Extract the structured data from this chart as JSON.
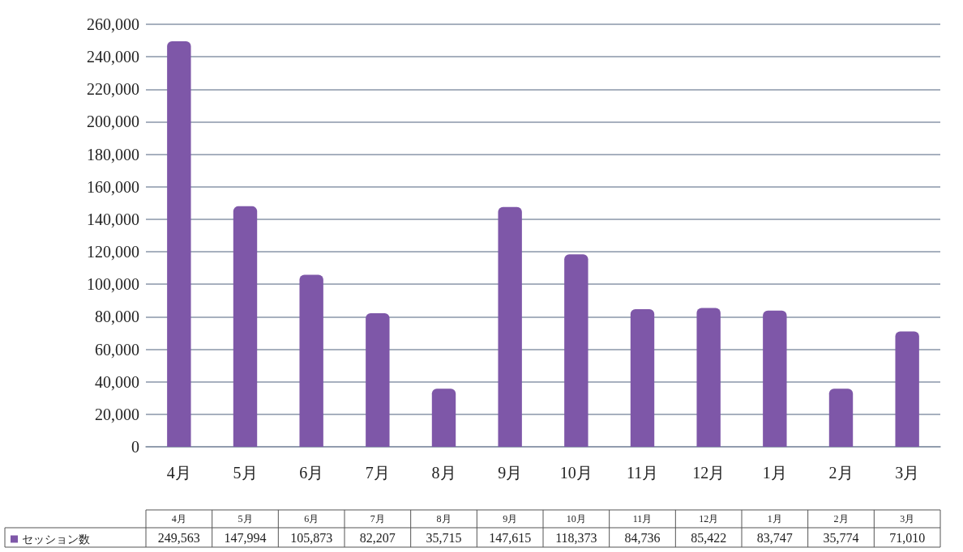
{
  "chart_data": {
    "type": "bar",
    "categories": [
      "4月",
      "5月",
      "6月",
      "7月",
      "8月",
      "9月",
      "10月",
      "11月",
      "12月",
      "1月",
      "2月",
      "3月"
    ],
    "series": [
      {
        "name": "セッション数",
        "color": "#7e57a8",
        "values": [
          249563,
          147994,
          105873,
          82207,
          35715,
          147615,
          118373,
          84736,
          85422,
          83747,
          35774,
          71010
        ],
        "value_labels": [
          "249,563",
          "147,994",
          "105,873",
          "82,207",
          "35,715",
          "147,615",
          "118,373",
          "84,736",
          "85,422",
          "83,747",
          "35,774",
          "71,010"
        ]
      }
    ],
    "ylim": [
      0,
      260000
    ],
    "yticks": [
      0,
      {
        "value": 20000,
        "label": "20,000"
      },
      {
        "value": 40000,
        "label": "40,000"
      },
      {
        "value": 60000,
        "label": "60,000"
      },
      {
        "value": 80000,
        "label": "80,000"
      },
      {
        "value": 100000,
        "label": "100,000"
      },
      {
        "value": 120000,
        "label": "120,000"
      },
      {
        "value": 140000,
        "label": "140,000"
      },
      {
        "value": 160000,
        "label": "160,000"
      },
      {
        "value": 180000,
        "label": "180,000"
      },
      {
        "value": 200000,
        "label": "200,000"
      },
      {
        "value": 220000,
        "label": "220,000"
      },
      {
        "value": 240000,
        "label": "240,000"
      },
      {
        "value": 260000,
        "label": "260,000"
      }
    ],
    "grid": "y",
    "legend": "bottom left"
  }
}
